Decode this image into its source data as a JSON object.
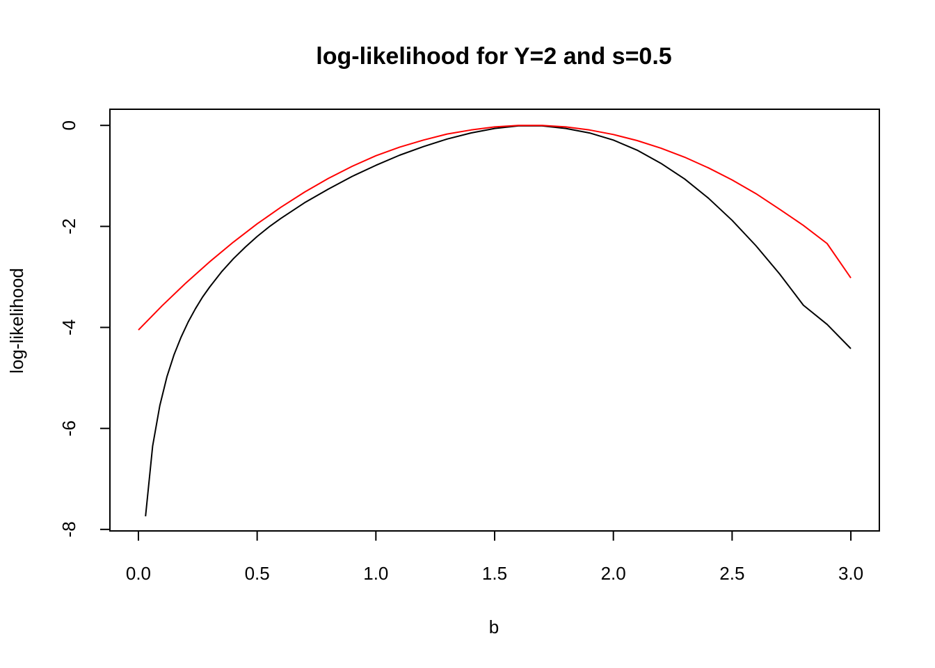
{
  "chart_data": {
    "type": "line",
    "title": "log-likelihood for Y=2 and s=0.5",
    "xlabel": "b",
    "ylabel": "log-likelihood",
    "xlim": [
      -0.12,
      3.12
    ],
    "ylim": [
      -8.03,
      0.32
    ],
    "x_ticks": [
      0.0,
      0.5,
      1.0,
      1.5,
      2.0,
      2.5,
      3.0
    ],
    "x_tick_labels": [
      "0.0",
      "0.5",
      "1.0",
      "1.5",
      "2.0",
      "2.5",
      "3.0"
    ],
    "y_ticks": [
      0,
      -2,
      -4,
      -6,
      -8
    ],
    "y_tick_labels": [
      "0",
      "-2",
      "-4",
      "-6",
      "-8"
    ],
    "grid": false,
    "legend": "none",
    "series": [
      {
        "color": "#000000",
        "x": [
          0.03,
          0.06,
          0.09,
          0.12,
          0.15,
          0.18,
          0.21,
          0.24,
          0.27,
          0.3,
          0.35,
          0.4,
          0.45,
          0.5,
          0.55,
          0.6,
          0.7,
          0.8,
          0.9,
          1.0,
          1.1,
          1.2,
          1.3,
          1.4,
          1.5,
          1.6,
          1.7,
          1.8,
          1.9,
          2.0,
          2.1,
          2.2,
          2.3,
          2.4,
          2.5,
          2.6,
          2.7,
          2.8,
          2.9,
          3.0
        ],
        "values": [
          -7.74,
          -6.35,
          -5.55,
          -4.98,
          -4.54,
          -4.19,
          -3.89,
          -3.63,
          -3.4,
          -3.2,
          -2.9,
          -2.64,
          -2.41,
          -2.2,
          -2.01,
          -1.84,
          -1.53,
          -1.26,
          -1.01,
          -0.79,
          -0.59,
          -0.42,
          -0.27,
          -0.15,
          -0.06,
          -0.01,
          -0.01,
          -0.06,
          -0.15,
          -0.29,
          -0.49,
          -0.75,
          -1.06,
          -1.44,
          -1.88,
          -2.38,
          -2.94,
          -3.56,
          -3.94,
          -4.42
        ]
      },
      {
        "color": "#ff0000",
        "x": [
          0.0,
          0.1,
          0.2,
          0.3,
          0.4,
          0.5,
          0.6,
          0.7,
          0.8,
          0.9,
          1.0,
          1.1,
          1.2,
          1.3,
          1.4,
          1.5,
          1.6,
          1.7,
          1.8,
          1.9,
          2.0,
          2.1,
          2.2,
          2.3,
          2.4,
          2.5,
          2.6,
          2.7,
          2.8,
          2.9,
          3.0
        ],
        "values": [
          -4.05,
          -3.57,
          -3.12,
          -2.7,
          -2.31,
          -1.95,
          -1.62,
          -1.32,
          -1.05,
          -0.81,
          -0.6,
          -0.43,
          -0.29,
          -0.17,
          -0.09,
          -0.03,
          -0.0,
          -0.0,
          -0.03,
          -0.09,
          -0.18,
          -0.3,
          -0.45,
          -0.63,
          -0.84,
          -1.08,
          -1.35,
          -1.66,
          -1.98,
          -2.34,
          -3.02
        ]
      }
    ]
  }
}
